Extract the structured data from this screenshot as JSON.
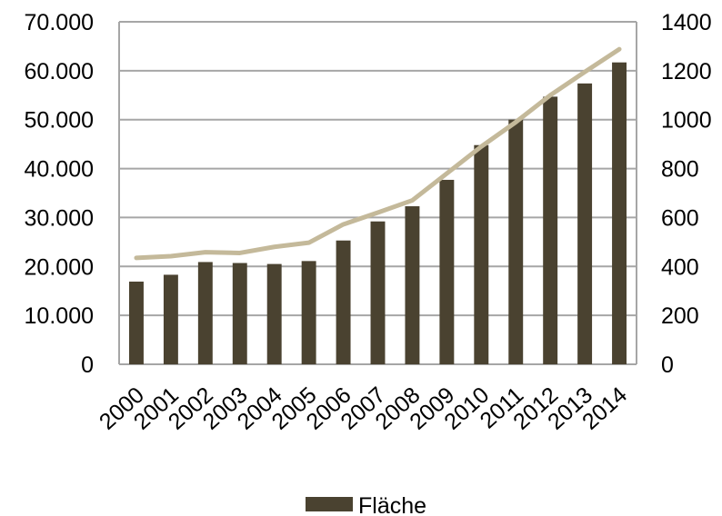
{
  "chart_data": {
    "type": "bar",
    "categories": [
      "2000",
      "2001",
      "2002",
      "2003",
      "2004",
      "2005",
      "2006",
      "2007",
      "2008",
      "2009",
      "2010",
      "2011",
      "2012",
      "2013",
      "2014"
    ],
    "series": [
      {
        "name": "Fläche",
        "type": "bar",
        "axis": "left",
        "color": "#4a4230",
        "values": [
          16900,
          18300,
          20900,
          20700,
          20500,
          21100,
          25300,
          29200,
          32300,
          37700,
          44800,
          50000,
          54700,
          57400,
          61700
        ]
      },
      {
        "name": "",
        "type": "line",
        "axis": "right",
        "color": "#c4b99a",
        "values": [
          435,
          442,
          458,
          455,
          480,
          497,
          572,
          620,
          670,
          780,
          890,
          990,
          1100,
          1195,
          1288
        ]
      }
    ],
    "y_left": {
      "ylim": [
        0,
        70000
      ],
      "ticks": [
        0,
        10000,
        20000,
        30000,
        40000,
        50000,
        60000,
        70000
      ],
      "tick_labels": [
        "0",
        "10.000",
        "20.000",
        "30.000",
        "40.000",
        "50.000",
        "60.000",
        "70.000"
      ]
    },
    "y_right": {
      "ylim": [
        0,
        1400
      ],
      "ticks": [
        0,
        200,
        400,
        600,
        800,
        1000,
        1200,
        1400
      ],
      "tick_labels": [
        "0",
        "200",
        "400",
        "600",
        "800",
        "1000",
        "1200",
        "1400"
      ]
    },
    "grid": true,
    "legend": {
      "position": "bottom",
      "entries": [
        "Fläche"
      ]
    },
    "colors": {
      "bar": "#4a4230",
      "line": "#c4b99a",
      "grid": "#a6a6a6"
    }
  }
}
